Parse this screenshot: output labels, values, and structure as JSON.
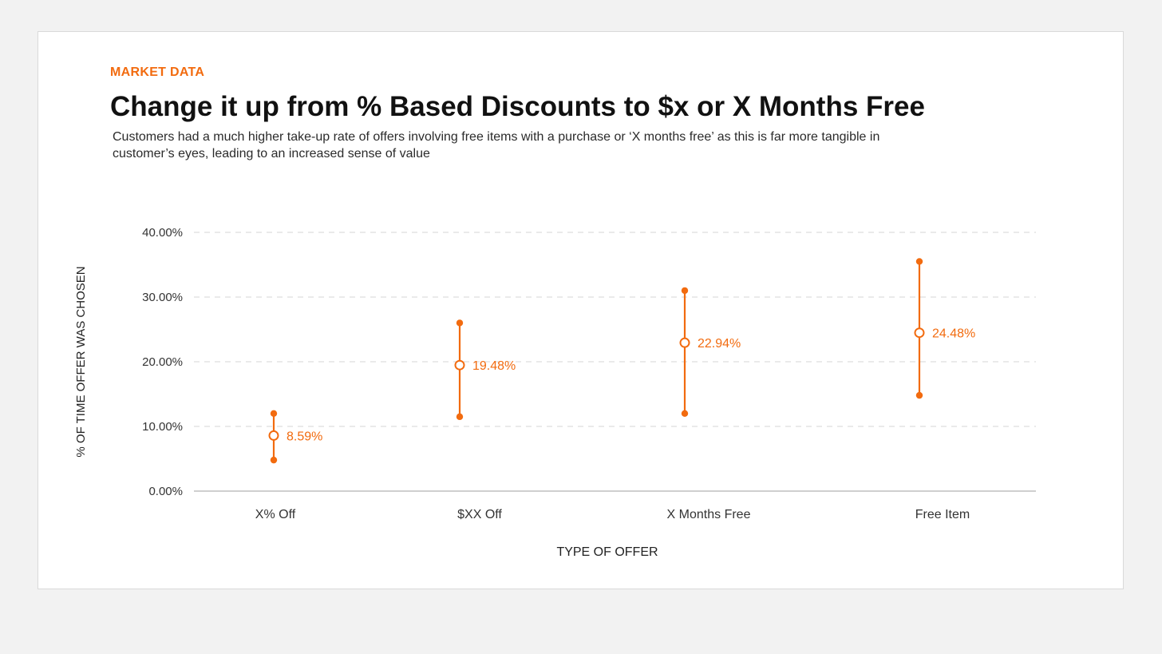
{
  "header": {
    "eyebrow": "MARKET DATA",
    "title": "Change it up from % Based Discounts to $x or X Months Free",
    "subtitle": "Customers had a much higher take-up rate of offers involving free items with a purchase or ‘X months free’ as this is far more tangible in customer’s eyes, leading to an increased sense of value"
  },
  "colors": {
    "accent": "#f26b0f",
    "grid": "#d4d4d4",
    "axis": "#bfbfbf",
    "text": "#222222"
  },
  "chart_data": {
    "type": "range",
    "title": "",
    "xlabel": "TYPE OF OFFER",
    "ylabel": "% OF TIME OFFER WAS CHOSEN",
    "ylim": [
      0,
      40
    ],
    "yticks": [
      0,
      10,
      20,
      30,
      40
    ],
    "ytick_labels": [
      "0.00%",
      "10.00%",
      "20.00%",
      "30.00%",
      "40.00%"
    ],
    "grid": true,
    "categories": [
      "X% Off",
      "$XX Off",
      "X Months Free",
      "Free Item"
    ],
    "series": [
      {
        "values": [
          8.59,
          19.48,
          22.94,
          24.48
        ],
        "lows": [
          4.8,
          11.5,
          12.0,
          14.8
        ],
        "highs": [
          12.0,
          26.0,
          31.0,
          35.5
        ],
        "labels": [
          "8.59%",
          "19.48%",
          "22.94%",
          "24.48%"
        ]
      }
    ]
  }
}
